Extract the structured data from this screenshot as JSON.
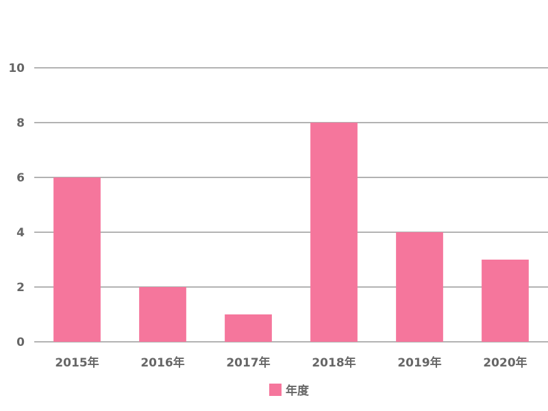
{
  "chart_data": {
    "type": "bar",
    "categories": [
      "2015年",
      "2016年",
      "2017年",
      "2018年",
      "2019年",
      "2020年"
    ],
    "series": [
      {
        "name": "年度",
        "values": [
          6,
          2,
          1,
          8,
          4,
          3
        ]
      }
    ],
    "title": "",
    "xlabel": "",
    "ylabel": "",
    "ylim": [
      0,
      10
    ],
    "yticks": [
      0,
      2,
      4,
      6,
      8,
      10
    ],
    "grid": true,
    "legend_position": "bottom-center",
    "colors": {
      "bar": "#f5769c",
      "grid": "#666666",
      "text": "#666666"
    }
  }
}
